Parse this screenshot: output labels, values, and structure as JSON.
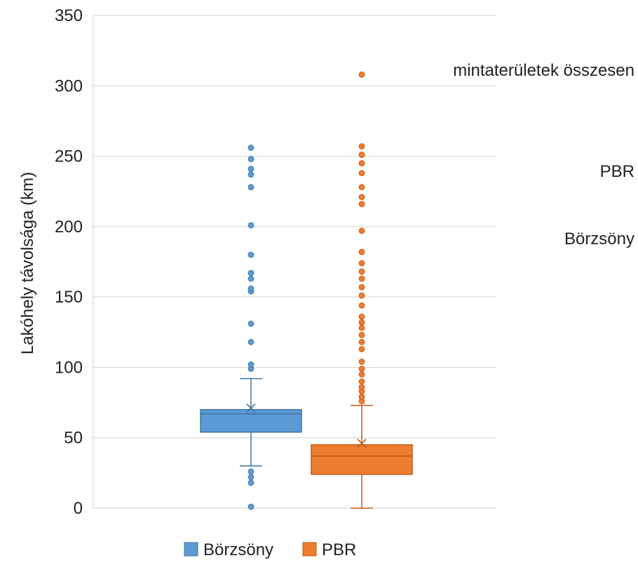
{
  "chart_data": {
    "type": "boxplot",
    "ylabel": "Lakóhely távolsága (km)",
    "ylim": [
      0,
      350
    ],
    "yticks": [
      0,
      50,
      100,
      150,
      200,
      250,
      300,
      350
    ],
    "grid": true,
    "legend_position": "bottom",
    "series": [
      {
        "name": "Börzsöny",
        "color": "#5b9bd5",
        "edge_color": "#41719c",
        "whisker_low": 30,
        "q1": 54,
        "median": 67,
        "q3": 70,
        "whisker_high": 92,
        "mean": 71,
        "outliers": [
          1,
          18,
          22,
          26,
          99,
          102,
          118,
          131,
          154,
          156,
          163,
          167,
          180,
          201,
          228,
          237,
          241,
          248,
          256
        ]
      },
      {
        "name": "PBR",
        "color": "#ed7d31",
        "edge_color": "#c55a11",
        "whisker_low": 0,
        "q1": 24,
        "median": 37,
        "q3": 45,
        "whisker_high": 73,
        "mean": 46,
        "outliers": [
          76,
          79,
          83,
          86,
          90,
          95,
          99,
          104,
          113,
          118,
          123,
          128,
          132,
          136,
          144,
          151,
          157,
          163,
          168,
          174,
          182,
          197,
          216,
          221,
          228,
          238,
          245,
          251,
          257,
          308
        ]
      }
    ],
    "side_labels": [
      "mintaterületek összesen",
      "PBR",
      "Börzsöny"
    ]
  }
}
